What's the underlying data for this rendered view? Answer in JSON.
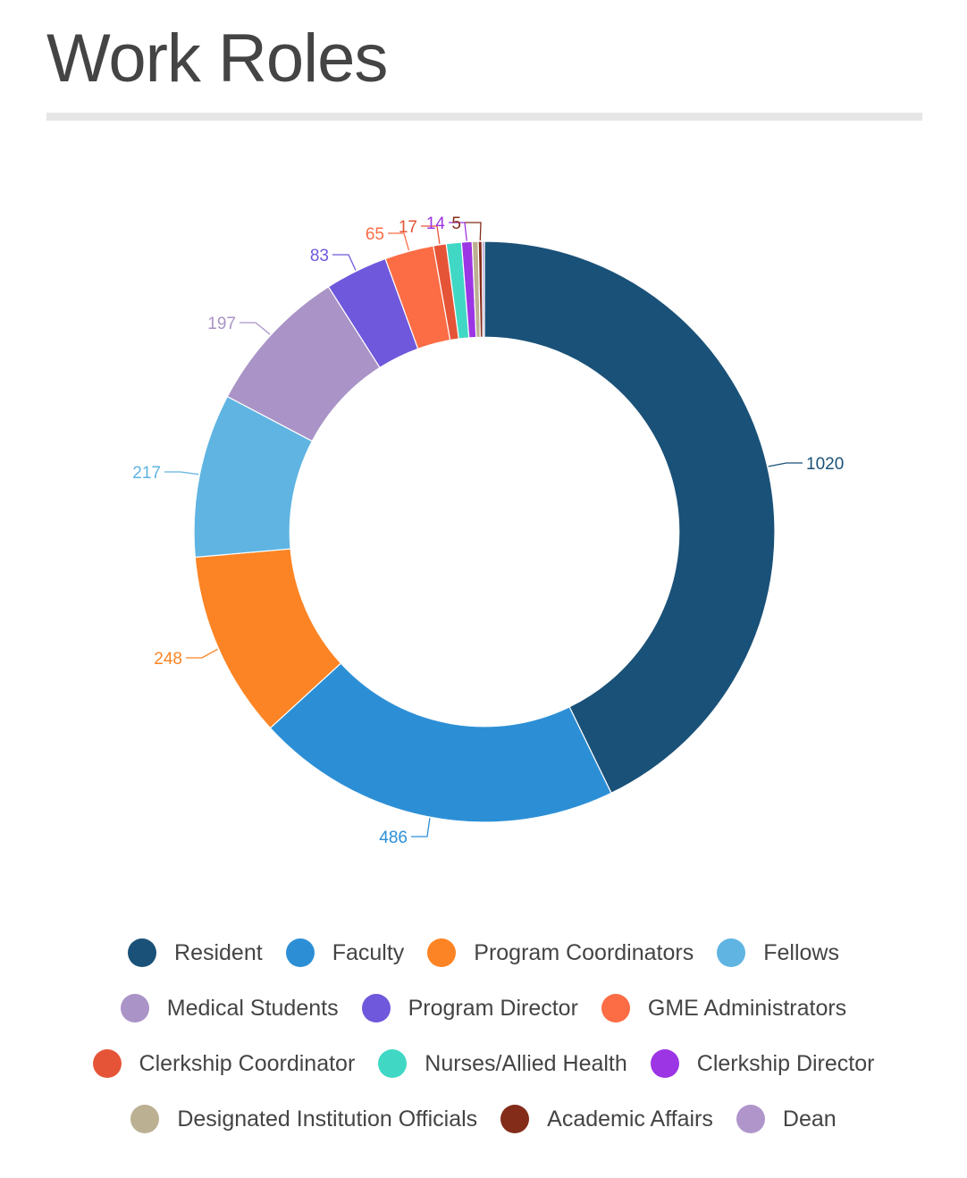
{
  "chart_data": {
    "type": "pie",
    "title": "Work Roles",
    "hole": 0.67,
    "categories": [
      "Resident",
      "Faculty",
      "Program Coordinators",
      "Fellows",
      "Medical Students",
      "Program Director",
      "GME Administrators",
      "Clerkship Coordinator",
      "Nurses/Allied Health",
      "Clerkship Director",
      "Designated Institution Officials",
      "Academic Affairs",
      "Dean"
    ],
    "values": [
      1020,
      486,
      248,
      217,
      197,
      83,
      65,
      17,
      20,
      14,
      8,
      5,
      3
    ],
    "labels": [
      "1020",
      "486",
      "248",
      "217",
      "197",
      "83",
      "65",
      "17",
      "",
      "14",
      "",
      "5",
      ""
    ],
    "colors": [
      "#1a5178",
      "#2c8fd6",
      "#fc8424",
      "#5fb4e2",
      "#aa93c6",
      "#6f58dc",
      "#fc6c45",
      "#e65437",
      "#40d8c4",
      "#9c35e4",
      "#bcb092",
      "#832c1a",
      "#b095cb"
    ],
    "legend_placement": "bottom"
  }
}
